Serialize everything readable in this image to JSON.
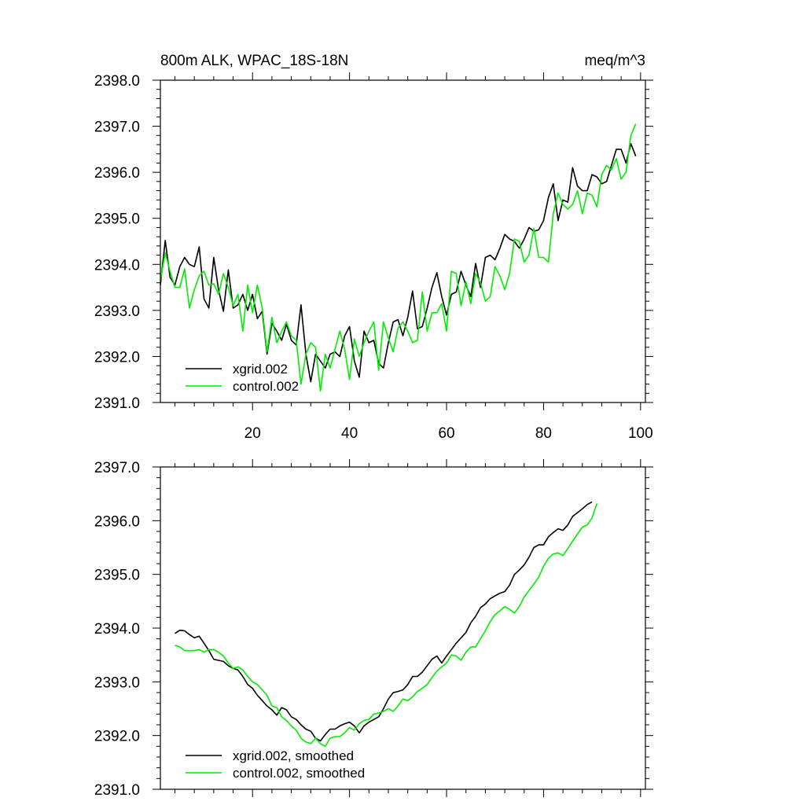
{
  "chart_data": [
    {
      "type": "line",
      "title": "800m ALK, WPAC_18S-18N",
      "units": "meq/m^3",
      "xlim": [
        1,
        101
      ],
      "ylim": [
        2391.0,
        2398.0
      ],
      "x_ticks": [
        20,
        40,
        60,
        80,
        100
      ],
      "x_tick_labels": [
        "20",
        "40",
        "60",
        "80",
        "100"
      ],
      "y_ticks": [
        2391.0,
        2392.0,
        2393.0,
        2394.0,
        2395.0,
        2396.0,
        2397.0,
        2398.0
      ],
      "y_tick_labels": [
        "2391.0",
        "2392.0",
        "2393.0",
        "2394.0",
        "2395.0",
        "2396.0",
        "2397.0",
        "2398.0"
      ],
      "legend_position": "bottom-left",
      "series": [
        {
          "name": "xgrid.002",
          "color": "#000000",
          "start_x": 1,
          "values": [
            2393.55,
            2394.52,
            2393.72,
            2393.55,
            2393.95,
            2394.15,
            2394.0,
            2393.95,
            2394.38,
            2393.25,
            2393.05,
            2394.15,
            2393.45,
            2392.98,
            2393.88,
            2393.05,
            2393.12,
            2393.35,
            2393.0,
            2393.35,
            2392.82,
            2392.98,
            2392.05,
            2392.72,
            2392.55,
            2392.35,
            2392.7,
            2392.35,
            2392.25,
            2393.12,
            2392.05,
            2391.45,
            2392.05,
            2391.9,
            2391.75,
            2392.05,
            2392.1,
            2392.0,
            2392.45,
            2392.65,
            2391.9,
            2391.55,
            2392.55,
            2392.3,
            2392.35,
            2391.85,
            2391.75,
            2392.3,
            2392.75,
            2392.8,
            2392.45,
            2392.85,
            2393.42,
            2392.6,
            2392.65,
            2393.05,
            2393.5,
            2393.82,
            2393.3,
            2392.9,
            2393.35,
            2393.4,
            2393.85,
            2393.55,
            2393.3,
            2394.02,
            2393.5,
            2394.15,
            2394.2,
            2394.1,
            2394.35,
            2394.65,
            2394.55,
            2394.5,
            2394.35,
            2394.55,
            2394.8,
            2394.72,
            2394.75,
            2394.95,
            2395.45,
            2395.75,
            2394.95,
            2395.4,
            2395.35,
            2396.1,
            2395.7,
            2395.6,
            2395.6,
            2395.95,
            2395.9,
            2395.75,
            2395.8,
            2396.15,
            2396.5,
            2396.5,
            2396.2,
            2396.62,
            2396.35
          ]
        },
        {
          "name": "control.002",
          "color": "#00ee00",
          "start_x": 1,
          "values": [
            2393.65,
            2394.25,
            2393.85,
            2393.5,
            2393.5,
            2393.9,
            2393.05,
            2393.45,
            2393.75,
            2393.85,
            2393.55,
            2393.58,
            2393.35,
            2393.8,
            2393.5,
            2393.1,
            2393.35,
            2392.55,
            2393.55,
            2392.95,
            2393.55,
            2393.05,
            2392.1,
            2392.85,
            2392.3,
            2392.55,
            2392.75,
            2392.45,
            2392.35,
            2391.4,
            2392.05,
            2392.3,
            2392.2,
            2391.25,
            2392.05,
            2391.75,
            2392.15,
            2392.55,
            2392.15,
            2391.5,
            2392.38,
            2392.0,
            2392.3,
            2392.55,
            2392.75,
            2391.7,
            2392.75,
            2392.4,
            2392.1,
            2392.62,
            2392.75,
            2392.55,
            2392.3,
            2392.35,
            2393.4,
            2392.55,
            2392.95,
            2392.95,
            2393.15,
            2392.55,
            2393.85,
            2393.8,
            2393.1,
            2393.62,
            2393.15,
            2393.8,
            2393.6,
            2393.2,
            2393.3,
            2393.95,
            2393.75,
            2393.45,
            2393.8,
            2394.55,
            2394.5,
            2394.05,
            2394.2,
            2394.78,
            2394.15,
            2394.15,
            2394.05,
            2395.1,
            2395.55,
            2395.3,
            2395.2,
            2395.3,
            2395.6,
            2395.1,
            2395.55,
            2395.5,
            2395.25,
            2395.95,
            2396.15,
            2396.05,
            2396.3,
            2395.85,
            2396.0,
            2396.8,
            2397.05
          ]
        }
      ],
      "legend_labels": {
        "xgrid": "xgrid.002",
        "control": "control.002"
      }
    },
    {
      "type": "line",
      "xlim": [
        1,
        101
      ],
      "ylim": [
        2391.0,
        2397.0
      ],
      "x_ticks": [
        20,
        40,
        60,
        80,
        100
      ],
      "y_ticks": [
        2391.0,
        2392.0,
        2393.0,
        2394.0,
        2395.0,
        2396.0,
        2397.0
      ],
      "y_tick_labels": [
        "2391.0",
        "2392.0",
        "2393.0",
        "2394.0",
        "2395.0",
        "2396.0",
        "2397.0"
      ],
      "legend_position": "bottom-left",
      "series": [
        {
          "name": "xgrid.002, smoothed",
          "color": "#000000",
          "start_x": 4,
          "values": [
            2393.9,
            2393.96,
            2393.95,
            2393.88,
            2393.82,
            2393.85,
            2393.72,
            2393.58,
            2393.42,
            2393.4,
            2393.38,
            2393.3,
            2393.25,
            2393.22,
            2393.1,
            2392.95,
            2392.88,
            2392.75,
            2392.65,
            2392.55,
            2392.48,
            2392.38,
            2392.52,
            2392.48,
            2392.35,
            2392.3,
            2392.2,
            2392.12,
            2392.08,
            2391.95,
            2391.9,
            2392.02,
            2392.12,
            2392.12,
            2392.18,
            2392.22,
            2392.25,
            2392.18,
            2392.05,
            2392.18,
            2392.25,
            2392.3,
            2392.35,
            2392.5,
            2392.68,
            2392.8,
            2392.82,
            2392.85,
            2392.95,
            2393.1,
            2393.1,
            2393.18,
            2393.3,
            2393.42,
            2393.48,
            2393.35,
            2393.48,
            2393.6,
            2393.72,
            2393.82,
            2393.92,
            2394.1,
            2394.22,
            2394.38,
            2394.45,
            2394.55,
            2394.6,
            2394.65,
            2394.68,
            2394.8,
            2395.0,
            2395.08,
            2395.18,
            2395.32,
            2395.5,
            2395.55,
            2395.55,
            2395.7,
            2395.78,
            2395.85,
            2395.82,
            2395.92,
            2396.08,
            2396.15,
            2396.22,
            2396.3,
            2396.35
          ]
        },
        {
          "name": "control.002, smoothed",
          "color": "#00ee00",
          "start_x": 4,
          "values": [
            2393.68,
            2393.65,
            2393.58,
            2393.58,
            2393.58,
            2393.6,
            2393.55,
            2393.6,
            2393.6,
            2393.55,
            2393.48,
            2393.35,
            2393.25,
            2393.28,
            2393.22,
            2393.1,
            2393.0,
            2392.95,
            2392.85,
            2392.75,
            2392.55,
            2392.52,
            2392.35,
            2392.28,
            2392.18,
            2392.1,
            2391.95,
            2391.88,
            2391.85,
            2391.95,
            2391.85,
            2391.8,
            2391.95,
            2391.98,
            2391.98,
            2392.05,
            2392.15,
            2392.1,
            2392.22,
            2392.28,
            2392.3,
            2392.4,
            2392.42,
            2392.45,
            2392.5,
            2392.45,
            2392.55,
            2392.68,
            2392.65,
            2392.72,
            2392.82,
            2392.88,
            2392.95,
            2393.08,
            2393.2,
            2393.28,
            2393.35,
            2393.5,
            2393.48,
            2393.4,
            2393.55,
            2393.65,
            2393.65,
            2393.8,
            2393.95,
            2394.12,
            2394.25,
            2394.32,
            2394.4,
            2394.35,
            2394.28,
            2394.4,
            2394.58,
            2394.7,
            2394.82,
            2394.95,
            2395.15,
            2395.3,
            2395.38,
            2395.4,
            2395.35,
            2395.48,
            2395.62,
            2395.75,
            2395.88,
            2395.92,
            2396.05,
            2396.32
          ]
        }
      ],
      "legend_labels": {
        "xgrid": "xgrid.002, smoothed",
        "control": "control.002, smoothed"
      }
    }
  ]
}
